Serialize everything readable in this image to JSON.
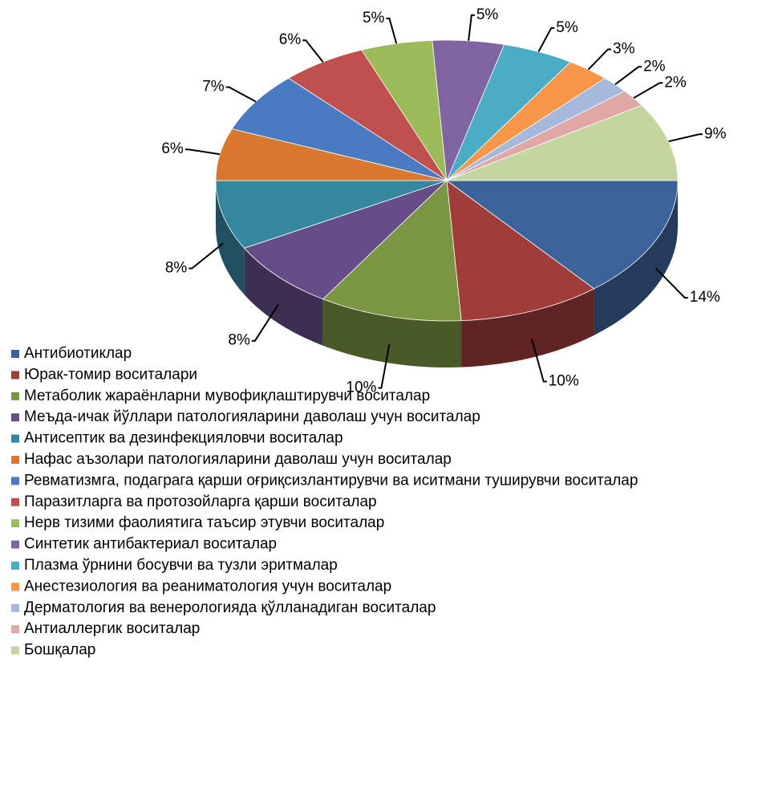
{
  "chart_data": {
    "type": "pie3d",
    "categories": [
      "Антибиотиклар",
      "Юрак-томир воситалари",
      "Метаболик жараёнларни мувофиқлаштирувчи воситалар",
      "Меъда-ичак йўллари патологияларини даволаш учун воситалар",
      "Антисептик ва дезинфекцияловчи воситалар",
      "Нафас аъзолари патологияларини даволаш учун воситалар",
      "Ревматизмга, подаграга қарши оғриқсизлантирувчи ва иситмани туширувчи воситалар",
      "Паразитларга ва протозойларга қарши воситалар",
      "Нерв тизими фаолиятига таъсир этувчи воситалар",
      "Синтетик антибактериал воситалар",
      "Плазма ўрнини босувчи ва тузли эритмалар",
      "Анестезиология ва реаниматология учун воситалар",
      "Дерматология ва венерологияда қўлланадиган воситалар",
      "Антиаллергик воситалар",
      "Бошқалар"
    ],
    "values": [
      14,
      10,
      10,
      8,
      8,
      6,
      7,
      6,
      5,
      5,
      5,
      3,
      2,
      2,
      9
    ],
    "value_labels": [
      "14%",
      "10%",
      "10%",
      "8%",
      "8%",
      "6%",
      "7%",
      "6%",
      "5%",
      "5%",
      "5%",
      "3%",
      "2%",
      "2%",
      "9%"
    ],
    "colors": [
      "#3c6399",
      "#a03c3a",
      "#7a9640",
      "#654e88",
      "#35869f",
      "#d9782e",
      "#4a7bc0",
      "#c0504d",
      "#9bbb59",
      "#8064a2",
      "#4bacc6",
      "#f79646",
      "#a6b8dc",
      "#dfa7a6",
      "#c4d6a0"
    ],
    "legend": "bottom-left"
  }
}
